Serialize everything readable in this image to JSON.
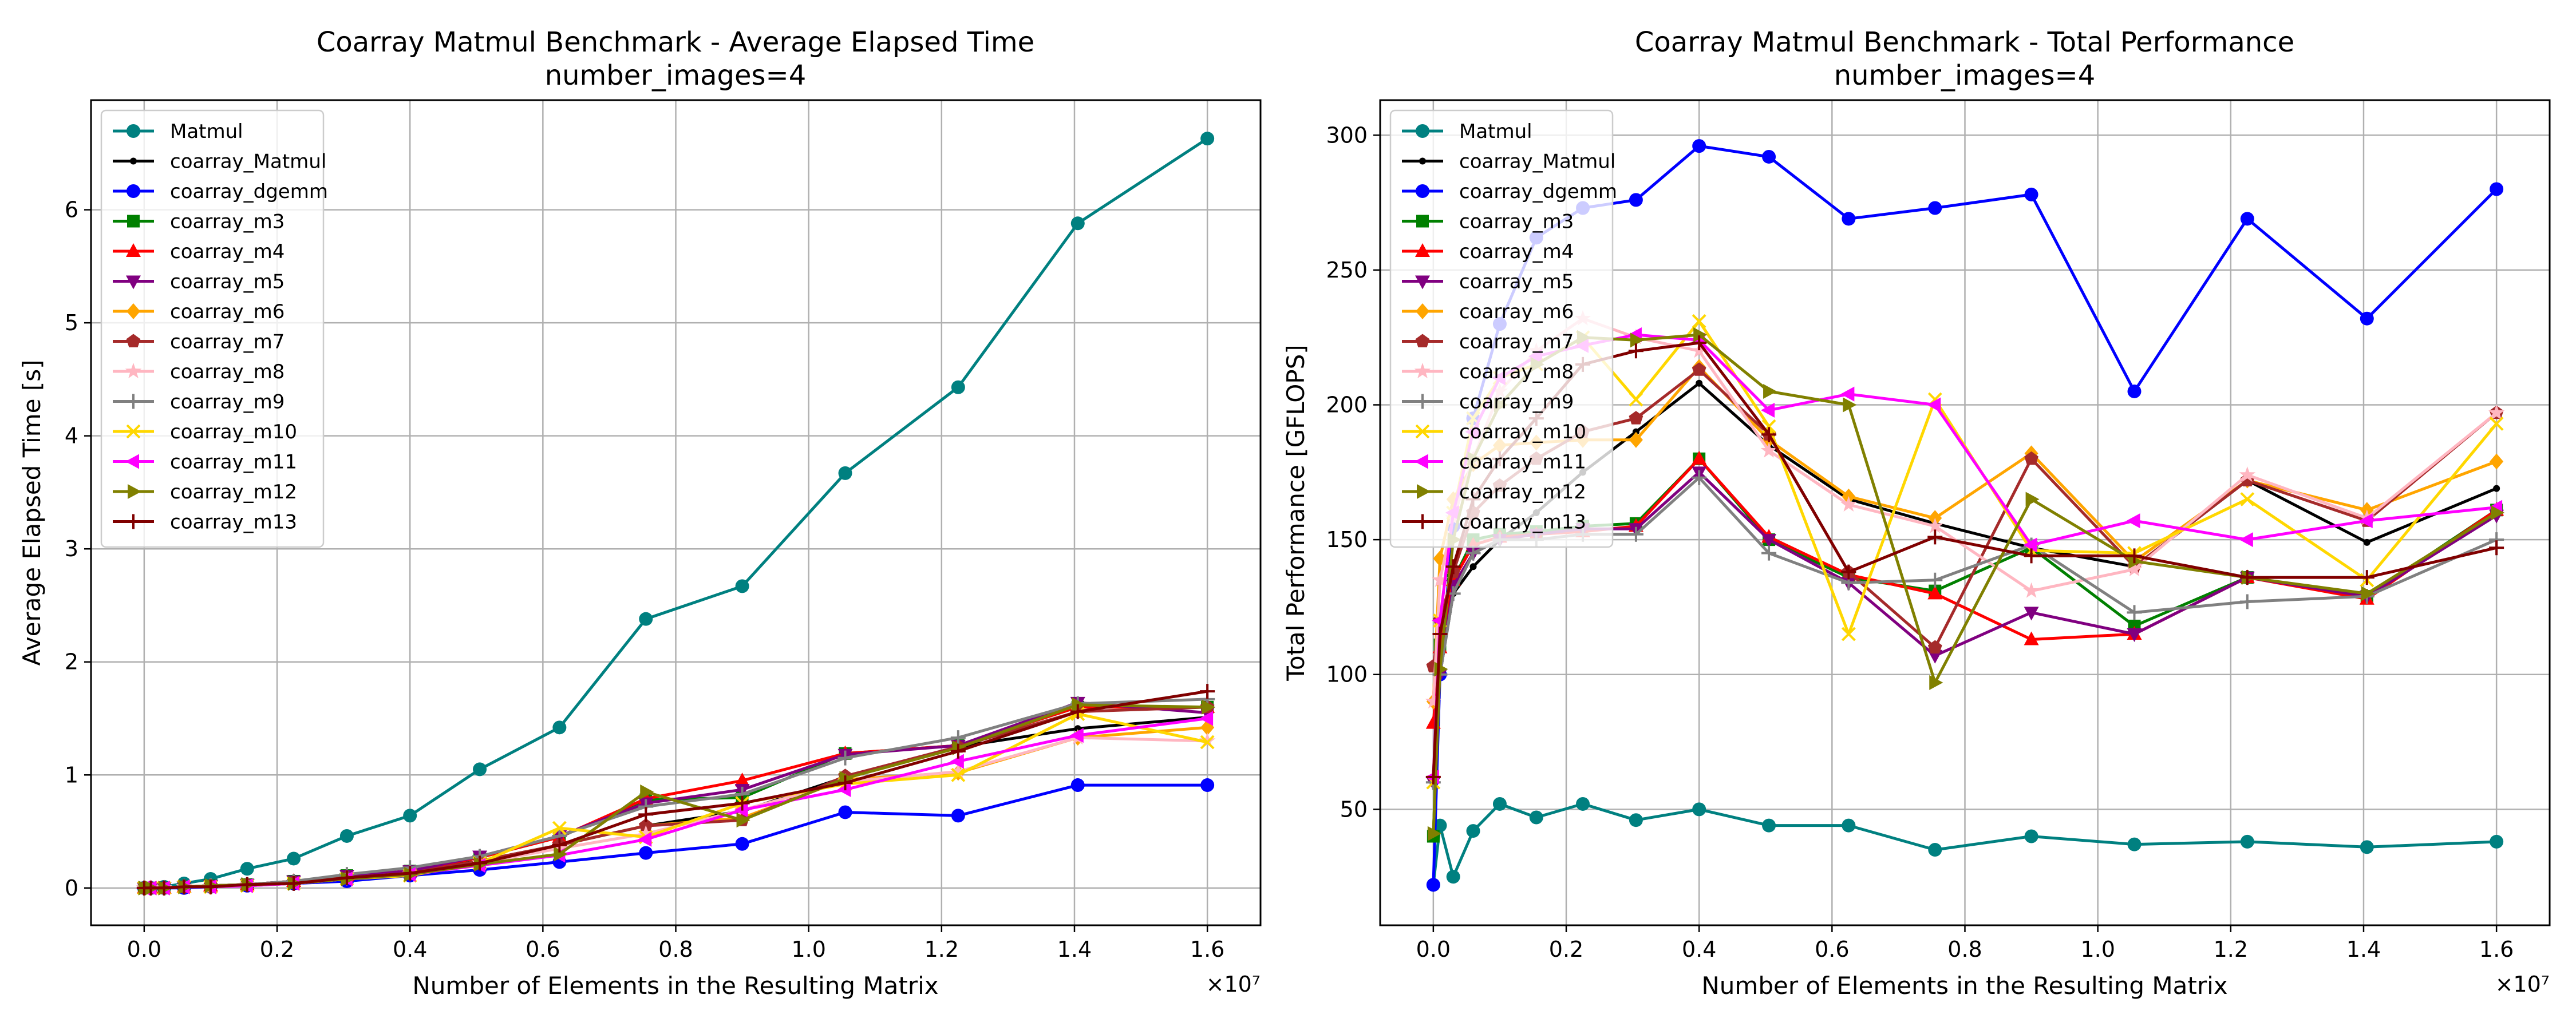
{
  "figure": {
    "background": "#ffffff"
  },
  "chart_data": [
    {
      "type": "line",
      "title": "Coarray Matmul Benchmark - Average Elapsed Time",
      "subtitle": "number_images=4",
      "xlabel": "Number of Elements in the Resulting Matrix",
      "ylabel": "Average Elapsed Time [s]",
      "x_exponent_label": "×10⁷",
      "xlim": [
        -0.08,
        1.68
      ],
      "ylim": [
        -0.33,
        6.97
      ],
      "xticks": [
        0.0,
        0.2,
        0.4,
        0.6,
        0.8,
        1.0,
        1.2,
        1.4,
        1.6
      ],
      "xtick_labels": [
        "0.0",
        "0.2",
        "0.4",
        "0.6",
        "0.8",
        "1.0",
        "1.2",
        "1.4",
        "1.6"
      ],
      "yticks": [
        0,
        1,
        2,
        3,
        4,
        5,
        6
      ],
      "ytick_labels": [
        "0",
        "1",
        "2",
        "3",
        "4",
        "5",
        "6"
      ],
      "grid": true,
      "legend_position": "upper-left",
      "x": [
        0.0,
        0.01,
        0.03,
        0.06,
        0.1,
        0.155,
        0.225,
        0.305,
        0.4,
        0.505,
        0.625,
        0.755,
        0.9,
        1.055,
        1.225,
        1.405,
        1.6
      ],
      "series": [
        {
          "name": "Matmul",
          "color": "#008080",
          "marker": "o",
          "values": [
            0.0,
            0.0,
            0.01,
            0.04,
            0.08,
            0.17,
            0.26,
            0.46,
            0.64,
            1.05,
            1.42,
            2.38,
            2.67,
            3.67,
            4.43,
            5.88,
            6.63
          ]
        },
        {
          "name": "coarray_Matmul",
          "color": "#000000",
          "marker": ".",
          "values": [
            0.0,
            0.0,
            0.0,
            0.01,
            0.02,
            0.03,
            0.05,
            0.09,
            0.14,
            0.24,
            0.38,
            0.55,
            0.68,
            0.98,
            1.25,
            1.41,
            1.51
          ]
        },
        {
          "name": "coarray_dgemm",
          "color": "#0000ff",
          "marker": "o",
          "values": [
            0.0,
            0.0,
            0.0,
            0.0,
            0.01,
            0.02,
            0.04,
            0.06,
            0.11,
            0.16,
            0.23,
            0.31,
            0.39,
            0.67,
            0.64,
            0.91,
            0.91
          ]
        },
        {
          "name": "coarray_m3",
          "color": "#008000",
          "marker": "s",
          "values": [
            0.0,
            0.0,
            0.0,
            0.01,
            0.02,
            0.03,
            0.06,
            0.11,
            0.15,
            0.27,
            0.45,
            0.78,
            0.8,
            1.19,
            1.26,
            1.6,
            1.6
          ]
        },
        {
          "name": "coarray_m4",
          "color": "#ff0000",
          "marker": "^",
          "values": [
            0.0,
            0.0,
            0.0,
            0.01,
            0.02,
            0.03,
            0.06,
            0.11,
            0.15,
            0.27,
            0.45,
            0.79,
            0.95,
            1.19,
            1.26,
            1.6,
            1.6
          ]
        },
        {
          "name": "coarray_m5",
          "color": "#800080",
          "marker": "v",
          "values": [
            0.0,
            0.0,
            0.0,
            0.01,
            0.02,
            0.03,
            0.06,
            0.11,
            0.15,
            0.28,
            0.46,
            0.75,
            0.87,
            1.18,
            1.26,
            1.64,
            1.55
          ]
        },
        {
          "name": "coarray_m6",
          "color": "#ffa500",
          "marker": "D",
          "values": [
            0.0,
            0.0,
            0.0,
            0.01,
            0.01,
            0.03,
            0.05,
            0.09,
            0.13,
            0.23,
            0.38,
            0.55,
            0.62,
            0.96,
            1.02,
            1.33,
            1.42
          ]
        },
        {
          "name": "coarray_m7",
          "color": "#a52a2a",
          "marker": "p",
          "values": [
            0.0,
            0.0,
            0.0,
            0.01,
            0.02,
            0.03,
            0.05,
            0.09,
            0.13,
            0.24,
            0.38,
            0.55,
            0.6,
            0.99,
            1.25,
            1.56,
            1.6
          ]
        },
        {
          "name": "coarray_m8",
          "color": "#ffb6c1",
          "marker": "*",
          "values": [
            0.0,
            0.0,
            0.0,
            0.01,
            0.01,
            0.03,
            0.04,
            0.08,
            0.12,
            0.22,
            0.35,
            0.48,
            0.69,
            0.94,
            1.03,
            1.33,
            1.3
          ]
        },
        {
          "name": "coarray_m9",
          "color": "#808080",
          "marker": "+",
          "values": [
            0.0,
            0.0,
            0.0,
            0.01,
            0.02,
            0.03,
            0.06,
            0.12,
            0.18,
            0.28,
            0.46,
            0.72,
            0.83,
            1.15,
            1.33,
            1.63,
            1.67
          ]
        },
        {
          "name": "coarray_m10",
          "color": "#ffd700",
          "marker": "x",
          "values": [
            0.0,
            0.0,
            0.0,
            0.01,
            0.01,
            0.02,
            0.04,
            0.08,
            0.11,
            0.22,
            0.53,
            0.45,
            0.75,
            0.92,
            1.0,
            1.54,
            1.29
          ]
        },
        {
          "name": "coarray_m11",
          "color": "#ff00ff",
          "marker": "<",
          "values": [
            0.0,
            0.0,
            0.0,
            0.01,
            0.01,
            0.02,
            0.04,
            0.08,
            0.12,
            0.2,
            0.29,
            0.43,
            0.69,
            0.87,
            1.12,
            1.35,
            1.5
          ]
        },
        {
          "name": "coarray_m12",
          "color": "#808000",
          "marker": ">",
          "values": [
            0.0,
            0.0,
            0.0,
            0.01,
            0.02,
            0.03,
            0.04,
            0.08,
            0.12,
            0.21,
            0.3,
            0.85,
            0.6,
            0.97,
            1.24,
            1.62,
            1.6
          ]
        },
        {
          "name": "coarray_m13",
          "color": "#800000",
          "marker": "+",
          "values": [
            0.0,
            0.0,
            0.0,
            0.01,
            0.01,
            0.03,
            0.04,
            0.09,
            0.13,
            0.22,
            0.38,
            0.65,
            0.75,
            0.93,
            1.21,
            1.56,
            1.74
          ]
        }
      ]
    },
    {
      "type": "line",
      "title": "Coarray Matmul Benchmark - Total Performance",
      "subtitle": "number_images=4",
      "xlabel": "Number of Elements in the Resulting Matrix",
      "ylabel": "Total Performance [GFLOPS]",
      "x_exponent_label": "×10⁷",
      "xlim": [
        -0.08,
        1.68
      ],
      "ylim": [
        7,
        313
      ],
      "xticks": [
        0.0,
        0.2,
        0.4,
        0.6,
        0.8,
        1.0,
        1.2,
        1.4,
        1.6
      ],
      "xtick_labels": [
        "0.0",
        "0.2",
        "0.4",
        "0.6",
        "0.8",
        "1.0",
        "1.2",
        "1.4",
        "1.6"
      ],
      "yticks": [
        50,
        100,
        150,
        200,
        250,
        300
      ],
      "ytick_labels": [
        "50",
        "100",
        "150",
        "200",
        "250",
        "300"
      ],
      "grid": true,
      "legend_position": "upper-left",
      "x": [
        0.0,
        0.01,
        0.03,
        0.06,
        0.1,
        0.155,
        0.225,
        0.305,
        0.4,
        0.505,
        0.625,
        0.755,
        0.9,
        1.055,
        1.225,
        1.405,
        1.6
      ],
      "series": [
        {
          "name": "Matmul",
          "color": "#008080",
          "marker": "o",
          "values": [
            22,
            44,
            25,
            42,
            52,
            47,
            52,
            46,
            50,
            44,
            44,
            35,
            40,
            37,
            38,
            36,
            38
          ]
        },
        {
          "name": "coarray_Matmul",
          "color": "#000000",
          "marker": ".",
          "values": [
            60,
            100,
            130,
            140,
            150,
            160,
            175,
            190,
            208,
            185,
            165,
            156,
            147,
            140,
            172,
            149,
            169
          ]
        },
        {
          "name": "coarray_dgemm",
          "color": "#0000ff",
          "marker": "o",
          "values": [
            22,
            100,
            155,
            195,
            230,
            262,
            273,
            276,
            296,
            292,
            269,
            273,
            278,
            205,
            269,
            232,
            280
          ]
        },
        {
          "name": "coarray_m3",
          "color": "#008000",
          "marker": "s",
          "values": [
            40,
            111,
            135,
            150,
            152,
            153,
            155,
            156,
            180,
            150,
            136,
            131,
            147,
            118,
            136,
            129,
            161
          ]
        },
        {
          "name": "coarray_m4",
          "color": "#ff0000",
          "marker": "^",
          "values": [
            82,
            110,
            135,
            148,
            151,
            152,
            153,
            155,
            180,
            151,
            137,
            130,
            113,
            115,
            136,
            128,
            161
          ]
        },
        {
          "name": "coarray_m5",
          "color": "#800080",
          "marker": "v",
          "values": [
            60,
            100,
            133,
            145,
            150,
            152,
            154,
            154,
            175,
            150,
            134,
            107,
            123,
            115,
            136,
            129,
            159
          ]
        },
        {
          "name": "coarray_m6",
          "color": "#ffa500",
          "marker": "D",
          "values": [
            90,
            143,
            165,
            178,
            185,
            186,
            187,
            187,
            214,
            187,
            166,
            158,
            182,
            142,
            172,
            161,
            179
          ]
        },
        {
          "name": "coarray_m7",
          "color": "#a52a2a",
          "marker": "p",
          "values": [
            103,
            120,
            138,
            160,
            170,
            180,
            190,
            195,
            213,
            189,
            138,
            110,
            180,
            140,
            172,
            157,
            197
          ]
        },
        {
          "name": "coarray_m8",
          "color": "#ffb6c1",
          "marker": "*",
          "values": [
            90,
            135,
            158,
            180,
            205,
            220,
            232,
            225,
            220,
            183,
            163,
            155,
            131,
            139,
            174,
            158,
            197
          ]
        },
        {
          "name": "coarray_m9",
          "color": "#808080",
          "marker": "+",
          "values": [
            60,
            100,
            130,
            145,
            150,
            150,
            152,
            152,
            173,
            145,
            134,
            135,
            148,
            123,
            127,
            129,
            150
          ]
        },
        {
          "name": "coarray_m10",
          "color": "#ffd700",
          "marker": "x",
          "values": [
            60,
            120,
            160,
            195,
            210,
            215,
            225,
            202,
            231,
            192,
            115,
            202,
            146,
            145,
            165,
            135,
            193
          ]
        },
        {
          "name": "coarray_m11",
          "color": "#ff00ff",
          "marker": "<",
          "values": [
            62,
            120,
            160,
            190,
            210,
            218,
            222,
            226,
            224,
            198,
            204,
            200,
            148,
            157,
            150,
            157,
            162
          ]
        },
        {
          "name": "coarray_m12",
          "color": "#808000",
          "marker": ">",
          "values": [
            41,
            102,
            150,
            180,
            200,
            215,
            225,
            224,
            226,
            205,
            200,
            97,
            165,
            142,
            136,
            130,
            160
          ]
        },
        {
          "name": "coarray_m13",
          "color": "#800000",
          "marker": "+",
          "values": [
            62,
            115,
            140,
            165,
            180,
            195,
            215,
            220,
            223,
            189,
            138,
            151,
            144,
            144,
            136,
            136,
            147
          ]
        }
      ]
    }
  ]
}
